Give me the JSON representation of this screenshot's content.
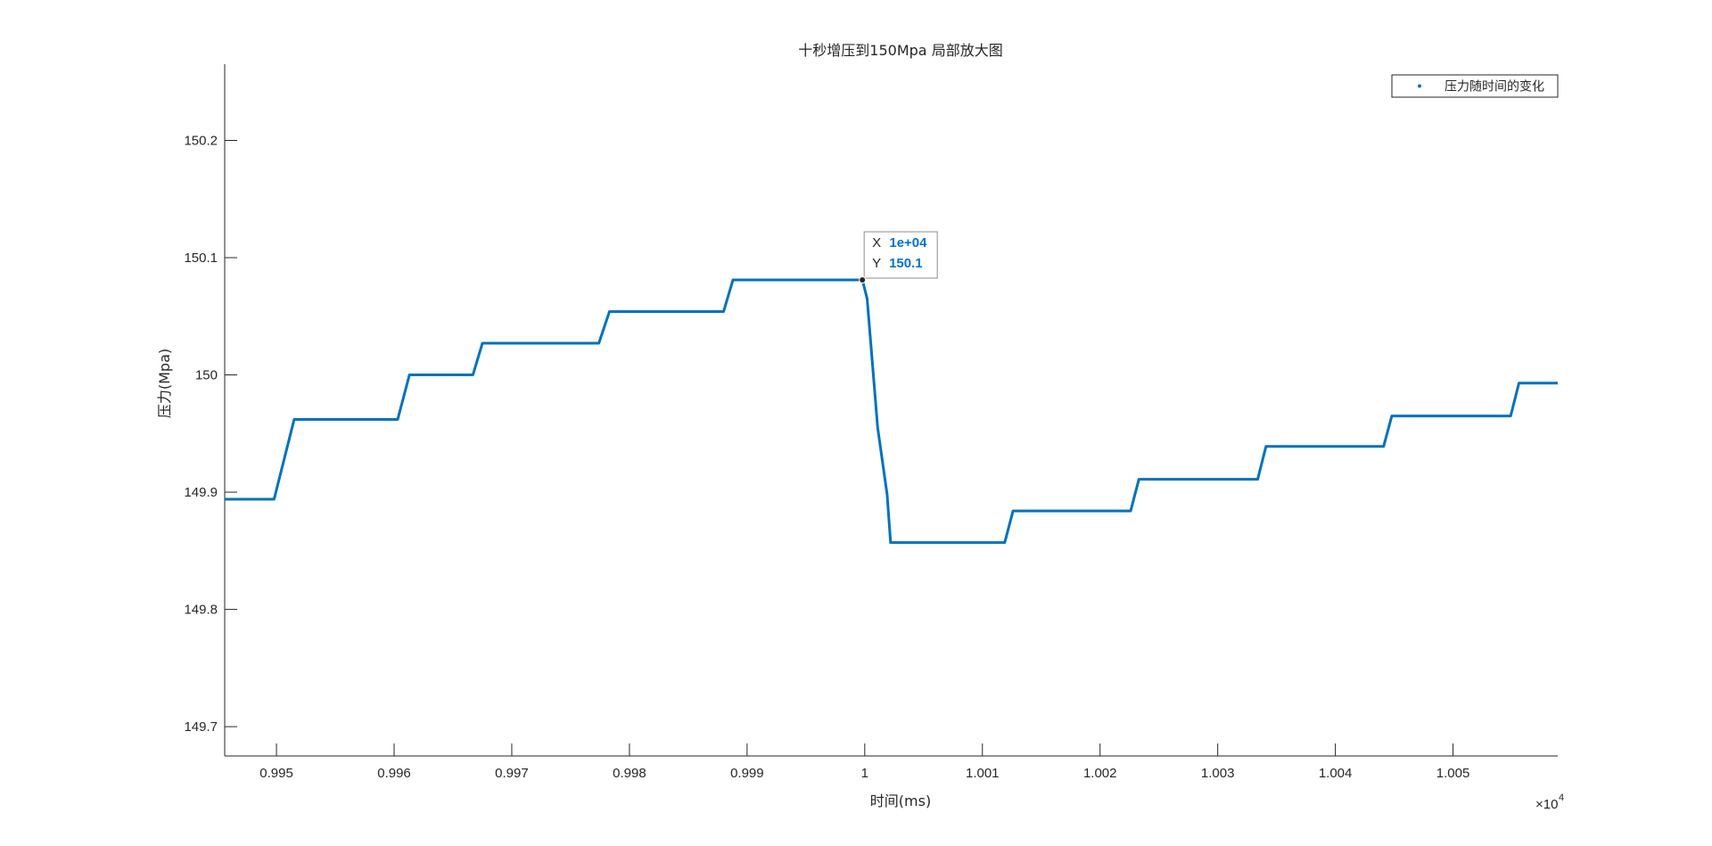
{
  "chart_data": {
    "type": "line",
    "title": "十秒增压到150Mpa 局部放大图",
    "xlabel": "时间(ms)",
    "ylabel": "压力(Mpa)",
    "x_exponent_base": "×10",
    "x_exponent_power": "4",
    "xlim": [
      9945.6,
      10058.9
    ],
    "ylim": [
      149.675,
      150.265
    ],
    "x_ticks": [
      9950,
      9960,
      9970,
      9980,
      9990,
      10000,
      10010,
      10020,
      10030,
      10040,
      10050
    ],
    "x_tick_labels": [
      "0.995",
      "0.996",
      "0.997",
      "0.998",
      "0.999",
      "1",
      "1.001",
      "1.002",
      "1.003",
      "1.004",
      "1.005"
    ],
    "y_ticks": [
      149.7,
      149.8,
      149.9,
      150.0,
      150.1,
      150.2
    ],
    "y_tick_labels": [
      "149.7",
      "149.8",
      "149.9",
      "150",
      "150.1",
      "150.2"
    ],
    "grid": false,
    "legend_position": "top-right",
    "series": [
      {
        "name": "压力随时间的变化",
        "color": "#0072BD",
        "x": [
          9945.6,
          9949.8,
          9951.5,
          9960.3,
          9961.3,
          9966.7,
          9967.5,
          9977.4,
          9978.3,
          9988.0,
          9988.8,
          9999.8,
          10000.2,
          10001.1,
          10001.9,
          10002.2,
          10011.9,
          10012.6,
          10022.6,
          10023.3,
          10033.4,
          10034.1,
          10044.1,
          10044.8,
          10054.9,
          10055.6,
          10058.9
        ],
        "y": [
          149.894,
          149.894,
          149.962,
          149.962,
          150.0,
          150.0,
          150.027,
          150.027,
          150.054,
          150.054,
          150.081,
          150.081,
          150.065,
          149.955,
          149.898,
          149.857,
          149.857,
          149.884,
          149.884,
          149.911,
          149.911,
          149.939,
          149.939,
          149.965,
          149.965,
          149.993,
          149.993
        ]
      }
    ],
    "datatip": {
      "x_key": "X",
      "x_value": "1e+04",
      "y_key": "Y",
      "y_value": "150.1",
      "x": 9999.8,
      "y": 150.081
    }
  }
}
